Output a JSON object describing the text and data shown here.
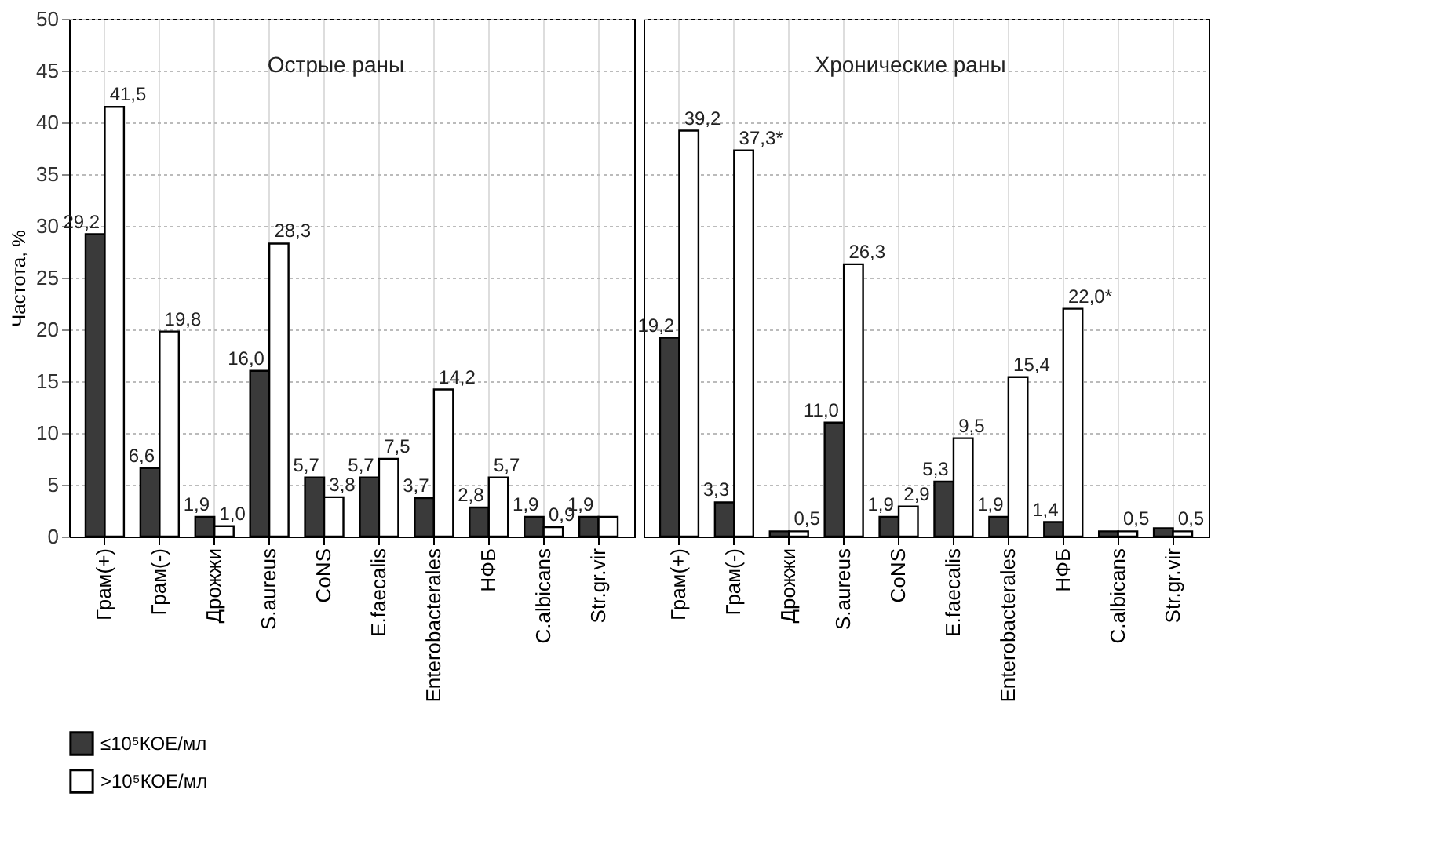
{
  "chart_data": [
    {
      "type": "bar",
      "title": "Острые раны",
      "ylabel": "Частота, %",
      "categories": [
        "Грам(+)",
        "Грам(-)",
        "Дрожжи",
        "S.aureus",
        "CoNS",
        "E.faecalis",
        "Enterobacterales",
        "НФБ",
        "C.albicans",
        "Str.gr.vir"
      ],
      "series": [
        {
          "name": "≤10⁵КОЕ/мл",
          "color": "#3a3a3a",
          "values": [
            29.2,
            6.6,
            1.9,
            16.0,
            5.7,
            5.7,
            3.7,
            2.8,
            1.9,
            1.9
          ],
          "value_labels": [
            "29,2",
            "6,6",
            "1,9",
            "16,0",
            "5,7",
            "5,7",
            "3,7",
            "2,8",
            "1,9",
            "1,9"
          ]
        },
        {
          "name": ">10⁵КОЕ/мл",
          "color": "#ffffff",
          "values": [
            41.5,
            19.8,
            1.0,
            28.3,
            3.8,
            7.5,
            14.2,
            5.7,
            0.9,
            1.9
          ],
          "value_labels": [
            "41,5",
            "19,8",
            "1,0",
            "28,3",
            "3,8",
            "7,5",
            "14,2",
            "5,7",
            "0,9",
            null
          ]
        }
      ],
      "ylim": [
        0,
        50
      ],
      "yticks": [
        0,
        5,
        10,
        15,
        20,
        25,
        30,
        35,
        40,
        45,
        50
      ],
      "grid": true,
      "legend": "bottom"
    },
    {
      "type": "bar",
      "title": "Хронические раны",
      "categories": [
        "Грам(+)",
        "Грам(-)",
        "Дрожжи",
        "S.aureus",
        "CoNS",
        "E.faecalis",
        "Enterobacterales",
        "НФБ",
        "C.albicans",
        "Str.gr.vir"
      ],
      "series": [
        {
          "color": "#3a3a3a",
          "values": [
            19.2,
            3.3,
            0.5,
            11.0,
            1.9,
            5.3,
            1.9,
            1.4,
            0.5,
            0.8
          ],
          "value_labels": [
            "19,2",
            "3,3",
            null,
            "11,0",
            "1,9",
            "5,3",
            "1,9",
            "1,4",
            null,
            null
          ]
        },
        {
          "color": "#ffffff",
          "values": [
            39.2,
            37.3,
            0.5,
            26.3,
            2.9,
            9.5,
            15.4,
            22.0,
            0.5,
            0.5
          ],
          "value_labels": [
            "39,2",
            "37,3*",
            "0,5",
            "26,3",
            "2,9",
            "9,5",
            "15,4",
            "22,0*",
            "0,5",
            "0,5"
          ]
        }
      ],
      "ylim": [
        0,
        50
      ],
      "yticks": [
        0,
        5,
        10,
        15,
        20,
        25,
        30,
        35,
        40,
        45,
        50
      ],
      "grid": true,
      "legend": false,
      "tick_labels": "x"
    }
  ]
}
